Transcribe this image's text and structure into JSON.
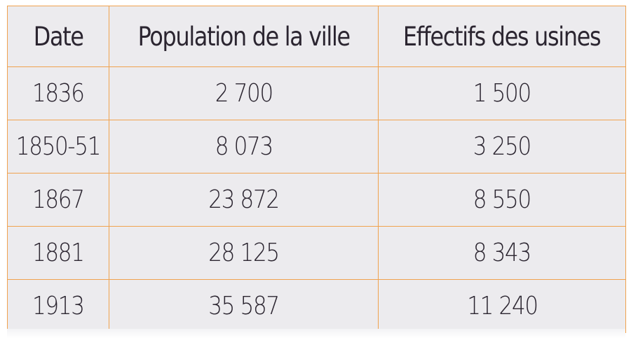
{
  "table": {
    "headers": [
      "Date",
      "Population de la ville",
      "Effectifs des usines"
    ],
    "rows": [
      [
        "1836",
        "2 700",
        "1 500"
      ],
      [
        "1850-51",
        "8 073",
        "3 250"
      ],
      [
        "1867",
        "23 872",
        "8 550"
      ],
      [
        "1881",
        "28 125",
        "8 343"
      ],
      [
        "1913",
        "35 587",
        "11 240"
      ]
    ]
  },
  "colors": {
    "border": "#f0a24e",
    "cell_background": "#ecebee",
    "text": "#2b2530"
  }
}
